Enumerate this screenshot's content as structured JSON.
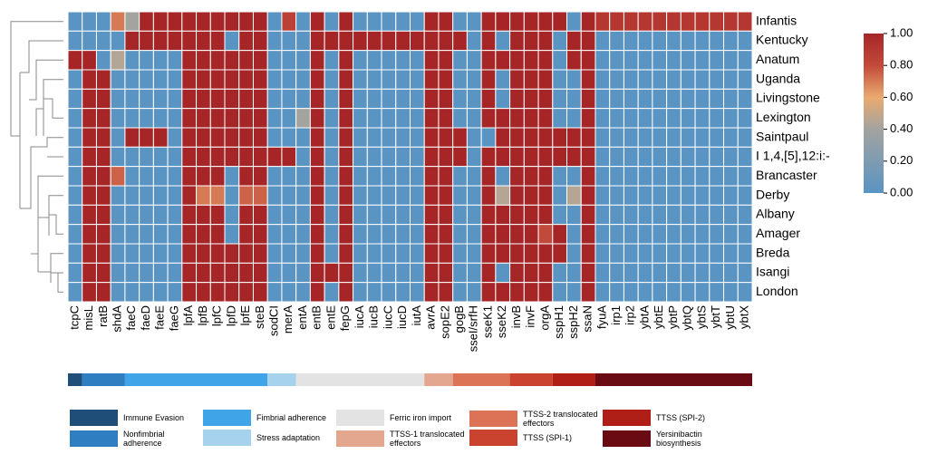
{
  "chart_data": {
    "type": "heatmap",
    "rows": [
      "Infantis",
      "Kentucky",
      "Anatum",
      "Uganda",
      "Livingstone",
      "Lexington",
      "Saintpaul",
      "I 1,4,[5],12:i:-",
      "Brancaster",
      "Derby",
      "Albany",
      "Amager",
      "Breda",
      "Isangi",
      "London"
    ],
    "columns": [
      "tcpC",
      "misL",
      "ratB",
      "shdA",
      "faeC",
      "faeD",
      "faeE",
      "faeG",
      "lpfA",
      "lpfB",
      "lpfC",
      "lpfD",
      "lpfE",
      "steB",
      "sodCI",
      "merA",
      "entA",
      "entB",
      "entE",
      "fepG",
      "iucA",
      "iucB",
      "iucC",
      "iucD",
      "iutA",
      "avrA",
      "sopE2",
      "gogB",
      "sseI/srfH",
      "sseK1",
      "sseK2",
      "invB",
      "invF",
      "orgA",
      "sspH1",
      "sspH2",
      "ssaN",
      "fyuA",
      "irp1",
      "irp2",
      "ybtA",
      "ybtE",
      "ybtP",
      "ybtQ",
      "ybtS",
      "ybtT",
      "ybtU",
      "ybtX"
    ],
    "matrix": [
      [
        0,
        0,
        0,
        0.7,
        0.4,
        1,
        1,
        1,
        1,
        1,
        1,
        1,
        1,
        1,
        0,
        0.85,
        0,
        1,
        0,
        1,
        0,
        0,
        0,
        0,
        0,
        1,
        1,
        0,
        0,
        1,
        1,
        1,
        1,
        1,
        1,
        0,
        1,
        0.9,
        0.9,
        0.9,
        0.9,
        0.9,
        0.9,
        0.9,
        0.9,
        0.9,
        0.9,
        0.9
      ],
      [
        0,
        0,
        0,
        0,
        1,
        1,
        1,
        1,
        1,
        1,
        1,
        0,
        1,
        1,
        0,
        0,
        0,
        1,
        1,
        1,
        1,
        1,
        1,
        1,
        1,
        1,
        1,
        1,
        0,
        1,
        0,
        1,
        1,
        1,
        0,
        1,
        1,
        0,
        0,
        0,
        0,
        0,
        0,
        0,
        0,
        0,
        0,
        0
      ],
      [
        1,
        1,
        0,
        0.45,
        0,
        0,
        0,
        0,
        1,
        1,
        1,
        1,
        1,
        1,
        0,
        0,
        0,
        1,
        0,
        1,
        0,
        0,
        0,
        0,
        0,
        1,
        1,
        0,
        0,
        1,
        1,
        1,
        1,
        1,
        0,
        1,
        1,
        0,
        0,
        0,
        0,
        0,
        0,
        0,
        0,
        0,
        0,
        0
      ],
      [
        0,
        1,
        1,
        0,
        0,
        0,
        0,
        0,
        1,
        1,
        1,
        1,
        1,
        1,
        0,
        0,
        0,
        1,
        0,
        1,
        0,
        0,
        0,
        0,
        0,
        1,
        1,
        0,
        0,
        1,
        0,
        1,
        1,
        1,
        0,
        0,
        1,
        0,
        0,
        0,
        0,
        0,
        0,
        0,
        0,
        0,
        0,
        0
      ],
      [
        0,
        1,
        1,
        0,
        0,
        0,
        0,
        0,
        1,
        1,
        1,
        1,
        1,
        1,
        0,
        0,
        0,
        1,
        0,
        1,
        0,
        0,
        0,
        0,
        0,
        1,
        1,
        0,
        0,
        1,
        0,
        1,
        1,
        1,
        0,
        0,
        1,
        0,
        0,
        0,
        0,
        0,
        0,
        0,
        0,
        0,
        0,
        0
      ],
      [
        0,
        1,
        1,
        0,
        0,
        0,
        0,
        0,
        1,
        1,
        1,
        1,
        1,
        1,
        0,
        0,
        0.4,
        1,
        0,
        1,
        0,
        0,
        0,
        0,
        0,
        1,
        1,
        0,
        0,
        1,
        1,
        1,
        1,
        1,
        0,
        0,
        1,
        0,
        0,
        0,
        0,
        0,
        0,
        0,
        0,
        0,
        0,
        0
      ],
      [
        0,
        1,
        1,
        0,
        1,
        1,
        1,
        0,
        1,
        1,
        1,
        1,
        1,
        1,
        0,
        0,
        0,
        1,
        0,
        1,
        0,
        0,
        0,
        0,
        0,
        1,
        1,
        1,
        0,
        0,
        1,
        1,
        1,
        1,
        1,
        1,
        1,
        0,
        0,
        0,
        0,
        0,
        0,
        0,
        0,
        0,
        0,
        0
      ],
      [
        0,
        1,
        1,
        0,
        0,
        0,
        0,
        0,
        1,
        1,
        1,
        1,
        1,
        1,
        1,
        1,
        0,
        1,
        0,
        1,
        0,
        0,
        0,
        0,
        0,
        1,
        1,
        1,
        0,
        1,
        1,
        1,
        1,
        1,
        1,
        1,
        1,
        0,
        0,
        0,
        0,
        0,
        0,
        0,
        0,
        0,
        0,
        0
      ],
      [
        0,
        1,
        1,
        0.75,
        0,
        0,
        0,
        0,
        1,
        1,
        1,
        0,
        1,
        1,
        0,
        0,
        0,
        1,
        0,
        1,
        0,
        0,
        0,
        0,
        0,
        1,
        1,
        0,
        0,
        1,
        0,
        1,
        1,
        1,
        0,
        0,
        1,
        0,
        0,
        0,
        0,
        0,
        0,
        0,
        0,
        0,
        0,
        0
      ],
      [
        0,
        1,
        1,
        0,
        0,
        0,
        0,
        0,
        1,
        0.7,
        0.7,
        0,
        0.75,
        0.75,
        0,
        0,
        0,
        1,
        0,
        1,
        0,
        0,
        0,
        0,
        0,
        1,
        1,
        0,
        0,
        1,
        0.45,
        1,
        1,
        1,
        0,
        0.45,
        1,
        0,
        0,
        0,
        0,
        0,
        0,
        0,
        0,
        0,
        0,
        0
      ],
      [
        0,
        1,
        1,
        0,
        0,
        0,
        0,
        0,
        1,
        1,
        1,
        0,
        1,
        1,
        0,
        0,
        0,
        1,
        0,
        1,
        0,
        0,
        0,
        0,
        0,
        1,
        1,
        0,
        0,
        1,
        1,
        1,
        1,
        1,
        0,
        0,
        1,
        0,
        0,
        0,
        0,
        0,
        0,
        0,
        0,
        0,
        0,
        0
      ],
      [
        0,
        1,
        1,
        0,
        0,
        0,
        0,
        0,
        1,
        1,
        1,
        0,
        1,
        1,
        0,
        0,
        0,
        1,
        0,
        1,
        0,
        0,
        0,
        0,
        0,
        1,
        1,
        0,
        0,
        1,
        1,
        1,
        1,
        0.8,
        1,
        0,
        1,
        0,
        0,
        0,
        0,
        0,
        0,
        0,
        0,
        0,
        0,
        0
      ],
      [
        0,
        1,
        1,
        0,
        0,
        0,
        0,
        0,
        1,
        1,
        1,
        1,
        1,
        1,
        0,
        0,
        0,
        1,
        0,
        1,
        0,
        0,
        0,
        0,
        0,
        1,
        1,
        0,
        0,
        1,
        1,
        1,
        1,
        1,
        1,
        0,
        1,
        0,
        0,
        0,
        0,
        0,
        0,
        0,
        0,
        0,
        0,
        0
      ],
      [
        0,
        1,
        1,
        0,
        0,
        0,
        0,
        0,
        1,
        1,
        1,
        1,
        1,
        1,
        0,
        0,
        0,
        1,
        1,
        1,
        0,
        0,
        0,
        0,
        0,
        1,
        1,
        0,
        0,
        1,
        0,
        1,
        1,
        1,
        0,
        0,
        1,
        0,
        0,
        0,
        0,
        0,
        0,
        0,
        0,
        0,
        0,
        0
      ],
      [
        0,
        1,
        1,
        0,
        0,
        0,
        0,
        0,
        1,
        1,
        1,
        1,
        1,
        1,
        0,
        0,
        0,
        1,
        0,
        1,
        0,
        0,
        0,
        0,
        0,
        1,
        1,
        0,
        0,
        1,
        1,
        1,
        1,
        1,
        0,
        0,
        1,
        0,
        0,
        0,
        0,
        0,
        0,
        0,
        0,
        0,
        0,
        0
      ]
    ],
    "colorscale": [
      [
        0,
        "#5a94c3"
      ],
      [
        0.4,
        "#a3a3a0"
      ],
      [
        0.6,
        "#eaaa70"
      ],
      [
        0.8,
        "#c24a3a"
      ],
      [
        1,
        "#a62628"
      ]
    ],
    "clim": [
      0,
      1
    ],
    "cticks": [
      {
        "value": 0,
        "label": "0.00"
      },
      {
        "value": 0.2,
        "label": "0.20"
      },
      {
        "value": 0.4,
        "label": "0.40"
      },
      {
        "value": 0.6,
        "label": "0.60"
      },
      {
        "value": 0.8,
        "label": "0.80"
      },
      {
        "value": 1,
        "label": "1.00"
      }
    ],
    "groups": [
      {
        "name": "Immune Evasion",
        "color": "#1f4e79",
        "span": 1
      },
      {
        "name": "Nonfimbrial adherence",
        "color": "#2e7ec1",
        "span": 3
      },
      {
        "name": "Fimbrial adherence",
        "color": "#3fa4e8",
        "span": 10
      },
      {
        "name": "Stress adaptation",
        "color": "#a6d2ee",
        "span": 2
      },
      {
        "name": "Ferric iron import",
        "color": "#e3e3e3",
        "span": 9
      },
      {
        "name": "TTSS-1 translocated effectors",
        "color": "#e3a78f",
        "span": 2
      },
      {
        "name": "TTSS-2 translocated effectors",
        "color": "#dc7256",
        "span": 4
      },
      {
        "name": "TTSS (SPI-1)",
        "color": "#c9432e",
        "span": 3
      },
      {
        "name": "TTSS (SPI-2)",
        "color": "#b01e18",
        "span": 3
      },
      {
        "name": "Yersinibactin biosynthesis",
        "color": "#6a0a12",
        "span": 11
      }
    ]
  }
}
